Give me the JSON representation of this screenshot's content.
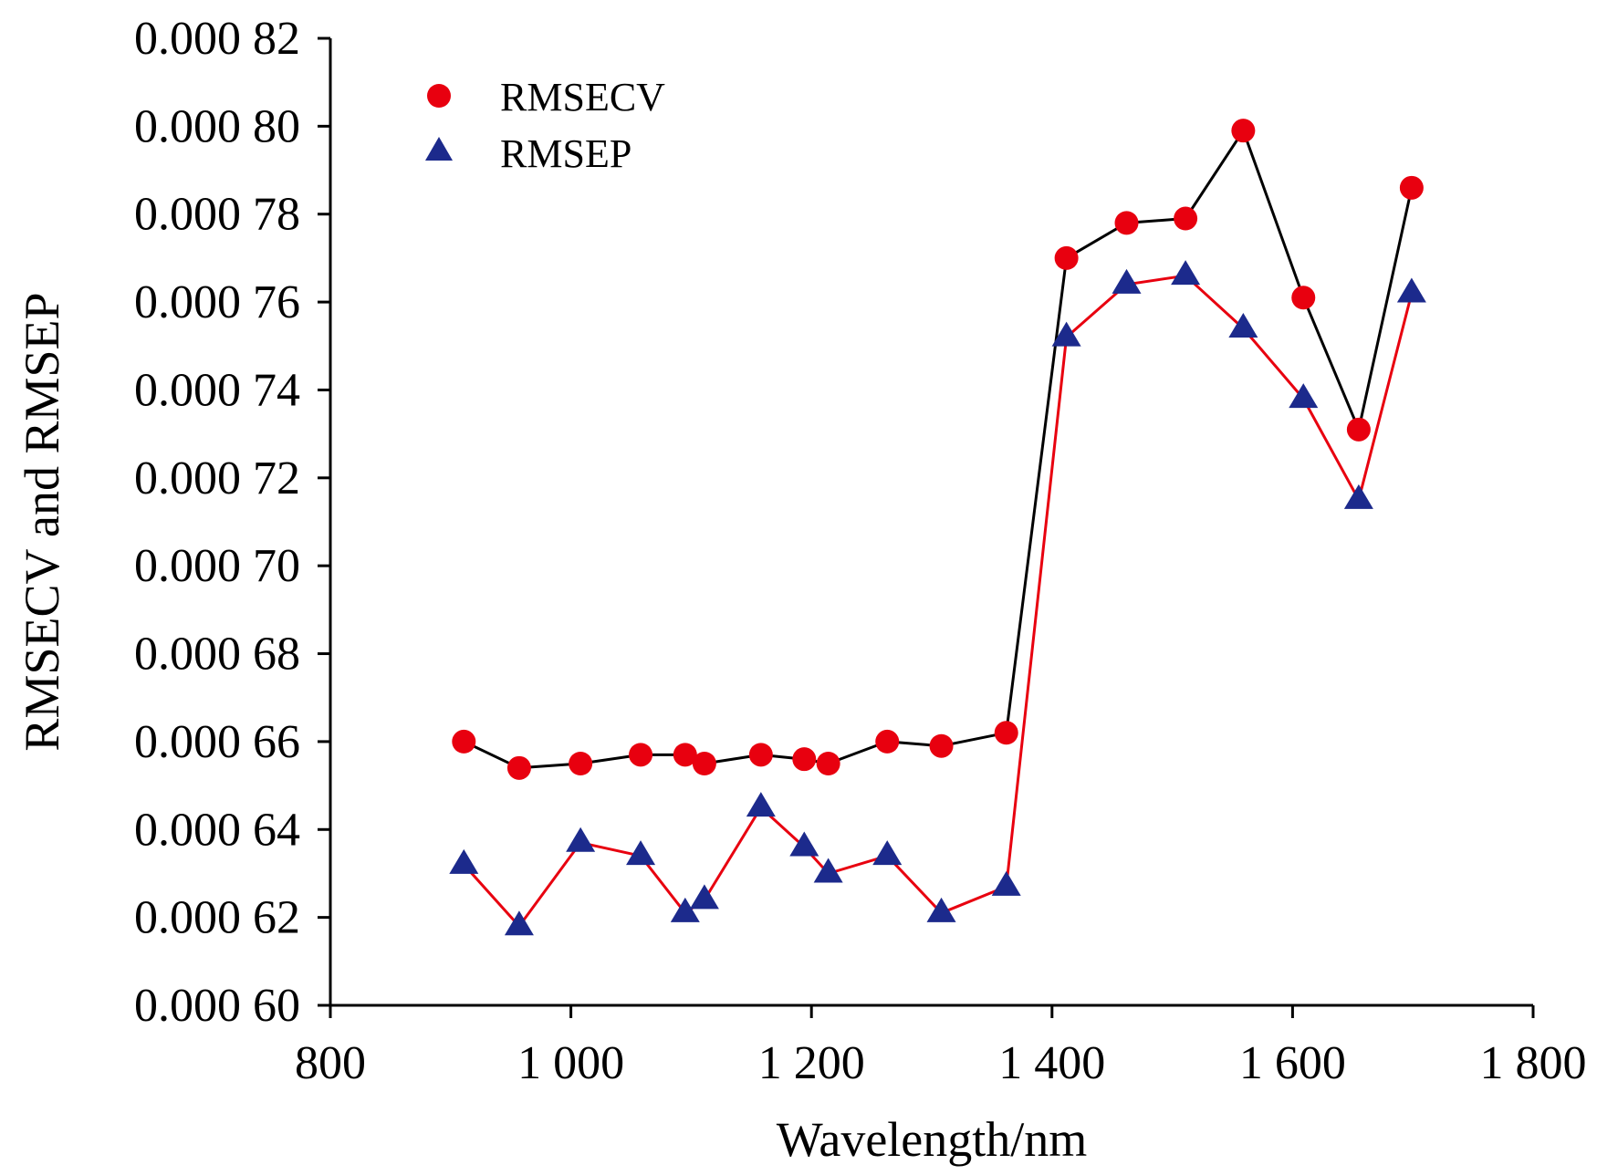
{
  "chart_data": {
    "type": "line",
    "xlabel": "Wavelength/nm",
    "ylabel": "RMSECV and RMSEP",
    "xlim": [
      800,
      1800
    ],
    "ylim": [
      0.0006,
      0.00082
    ],
    "xticks": [
      800,
      1000,
      1200,
      1400,
      1600,
      1800
    ],
    "xtick_labels": [
      "800",
      "1 000",
      "1 200",
      "1 400",
      "1 600",
      "1 800"
    ],
    "yticks": [
      0.0006,
      0.00062,
      0.00064,
      0.00066,
      0.00068,
      0.0007,
      0.00072,
      0.00074,
      0.00076,
      0.00078,
      0.0008,
      0.00082
    ],
    "ytick_labels": [
      "0.000 60",
      "0.000 62",
      "0.000 64",
      "0.000 66",
      "0.000 68",
      "0.000 70",
      "0.000 72",
      "0.000 74",
      "0.000 76",
      "0.000 78",
      "0.000 80",
      "0.000 82"
    ],
    "grid": false,
    "legend_position": "top-left",
    "series": [
      {
        "name": "RMSECV",
        "marker": "circle",
        "marker_color": "#e8000f",
        "line_color": "#000000",
        "points": [
          [
            911,
            0.00066
          ],
          [
            957,
            0.000654
          ],
          [
            1008,
            0.000655
          ],
          [
            1058,
            0.000657
          ],
          [
            1095,
            0.000657
          ],
          [
            1111,
            0.000655
          ],
          [
            1158,
            0.000657
          ],
          [
            1194,
            0.000656
          ],
          [
            1214,
            0.000655
          ],
          [
            1263,
            0.00066
          ],
          [
            1308,
            0.000659
          ],
          [
            1362,
            0.000662
          ],
          [
            1412,
            0.00077
          ],
          [
            1462,
            0.000778
          ],
          [
            1511,
            0.000779
          ],
          [
            1559,
            0.000799
          ],
          [
            1609,
            0.000761
          ],
          [
            1655,
            0.000731
          ],
          [
            1699,
            0.000786
          ]
        ]
      },
      {
        "name": "RMSEP",
        "marker": "triangle",
        "marker_color": "#1c2a8c",
        "line_color": "#e8000f",
        "points": [
          [
            911,
            0.000632
          ],
          [
            957,
            0.000618
          ],
          [
            1008,
            0.000637
          ],
          [
            1058,
            0.000634
          ],
          [
            1095,
            0.000621
          ],
          [
            1111,
            0.000624
          ],
          [
            1158,
            0.000645
          ],
          [
            1194,
            0.000636
          ],
          [
            1214,
            0.00063
          ],
          [
            1263,
            0.000634
          ],
          [
            1308,
            0.000621
          ],
          [
            1362,
            0.000627
          ],
          [
            1412,
            0.000752
          ],
          [
            1462,
            0.000764
          ],
          [
            1511,
            0.000766
          ],
          [
            1559,
            0.000754
          ],
          [
            1609,
            0.000738
          ],
          [
            1655,
            0.000715
          ],
          [
            1699,
            0.000762
          ]
        ]
      }
    ]
  }
}
